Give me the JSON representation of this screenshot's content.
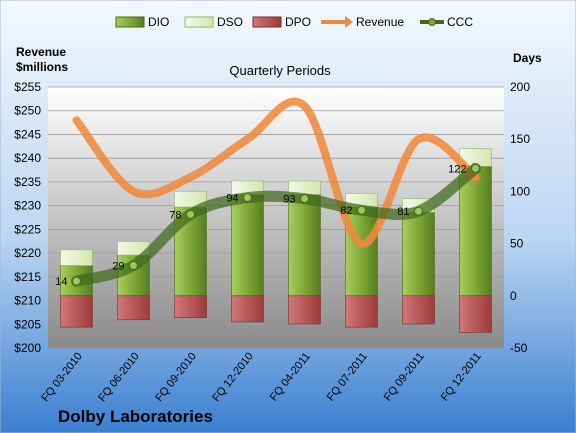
{
  "chart_data": {
    "type": "bar",
    "title": "Quarterly Periods",
    "company": "Dolby Laboratories",
    "left_axis": {
      "label_line1": "Revenue",
      "label_line2": "$millions",
      "range": [
        200,
        255
      ],
      "step": 5
    },
    "right_axis": {
      "label": "Days",
      "range": [
        -50,
        200
      ],
      "step": 50
    },
    "categories": [
      "FQ 03-2010",
      "FQ 06-2010",
      "FQ 09-2010",
      "FQ 12-2010",
      "FQ 04-2011",
      "FQ 07-2011",
      "FQ 09-2011",
      "FQ 12-2011"
    ],
    "series": [
      {
        "name": "DIO",
        "axis": "days",
        "values": [
          29,
          39,
          85,
          97,
          97,
          85,
          80,
          124
        ]
      },
      {
        "name": "DSO",
        "axis": "days",
        "values": [
          15,
          13,
          15,
          13,
          13,
          13,
          13,
          17
        ]
      },
      {
        "name": "DPO",
        "axis": "days",
        "values": [
          -30,
          -23,
          -21,
          -25,
          -27,
          -30,
          -27,
          -35
        ]
      },
      {
        "name": "Revenue",
        "axis": "revenue",
        "values": [
          248,
          233,
          236,
          244,
          251,
          222,
          244,
          236
        ]
      },
      {
        "name": "CCC",
        "axis": "days",
        "values": [
          14,
          29,
          78,
          94,
          93,
          82,
          81,
          122
        ]
      }
    ],
    "legend_position": "top",
    "grid": true,
    "colors": {
      "DIO": "#6e9a2c",
      "DSO": "#dfecc4",
      "DPO": "#b34a4a",
      "Revenue": "#ee8a3c",
      "CCC": "#3f6a1c",
      "plot_top": "#ffffff",
      "plot_bottom": "#8a8a8a",
      "bg_top": "#eef4fb",
      "bg_bottom": "#3a7fd0"
    }
  }
}
